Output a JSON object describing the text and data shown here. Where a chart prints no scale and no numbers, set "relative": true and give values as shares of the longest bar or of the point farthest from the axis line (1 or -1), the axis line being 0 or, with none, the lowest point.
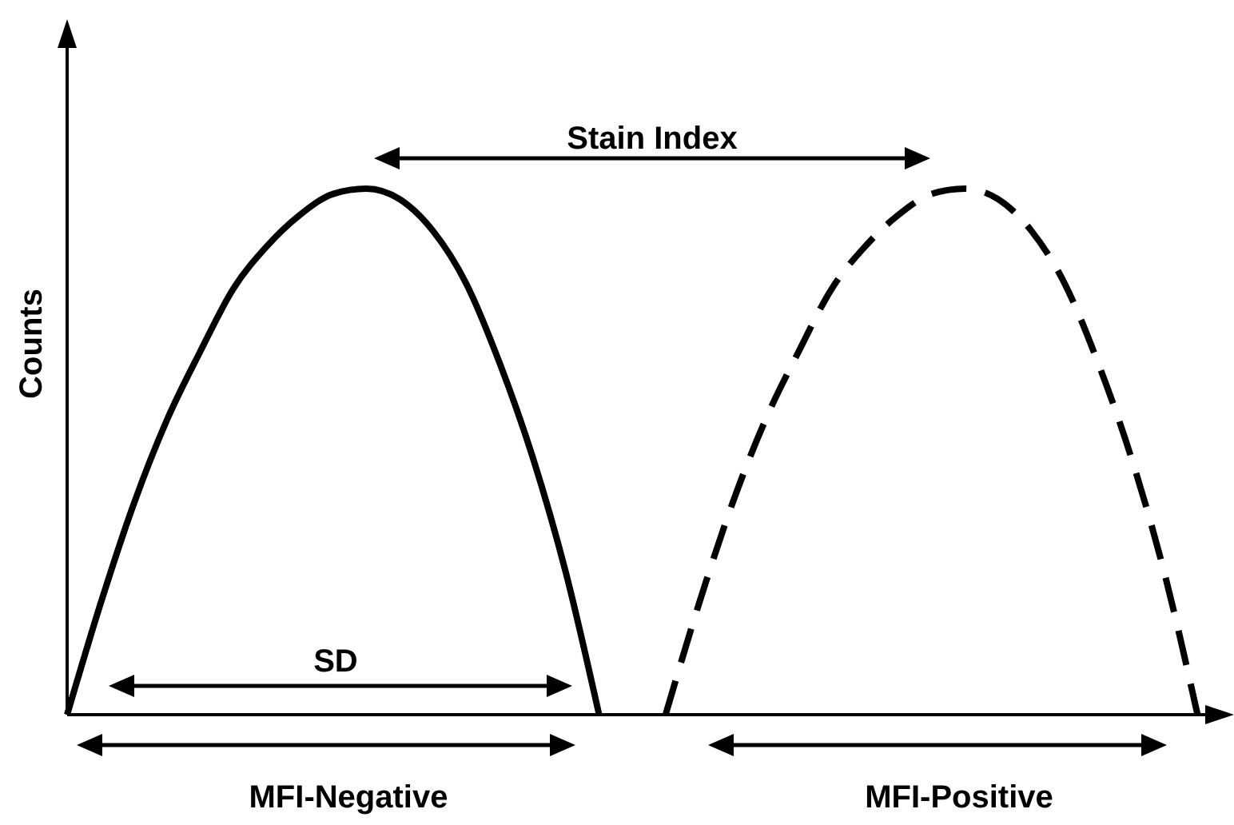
{
  "chart_data": {
    "type": "line",
    "ylabel": "Counts",
    "relative": true,
    "categories": [
      null,
      null,
      null,
      null,
      null,
      null,
      null,
      null,
      null,
      null,
      null,
      null,
      null,
      null,
      null,
      null,
      null,
      null,
      null,
      null,
      null,
      null,
      null,
      null,
      null,
      null,
      null,
      null,
      null,
      null,
      null,
      null,
      null,
      null,
      null,
      null
    ],
    "series": [
      {
        "color": "#000000",
        "line_style": "solid",
        "values": [
          0,
          0.21,
          0.4,
          0.56,
          0.69,
          0.81,
          0.89,
          0.95,
          0.99,
          1,
          0.98,
          0.92,
          0.82,
          0.67,
          0.49,
          0.27,
          0,
          null,
          null,
          null,
          null,
          null,
          null,
          null,
          null,
          null,
          null,
          null,
          null,
          null,
          null,
          null,
          null,
          null,
          null,
          null
        ]
      },
      {
        "color": "#000000",
        "line_style": "dashed",
        "values": [
          null,
          null,
          null,
          null,
          null,
          null,
          null,
          null,
          null,
          null,
          null,
          null,
          null,
          null,
          null,
          null,
          null,
          null,
          0,
          0.21,
          0.4,
          0.56,
          0.69,
          0.81,
          0.89,
          0.95,
          0.99,
          1,
          0.98,
          0.92,
          0.82,
          0.67,
          0.49,
          0.27,
          0,
          null
        ]
      }
    ],
    "annotations": [
      "Stain Index",
      "SD",
      "MFI-Negative",
      "MFI-Positive"
    ]
  }
}
